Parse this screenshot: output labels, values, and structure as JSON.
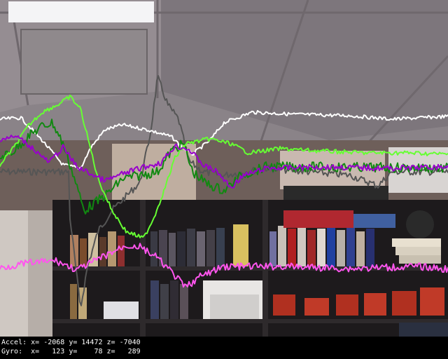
{
  "hud": {
    "accel": "Accel: x= -2068 y= 14472 z= -7040",
    "gyro": "Gyro:  x=   123 y=    78 z=   289"
  },
  "colors": {
    "white_trace": "#ffffff",
    "bright_green_trace": "#66ff33",
    "dark_green_trace": "#118811",
    "purple_trace": "#9900cc",
    "magenta_trace": "#ff55ee",
    "gray_trace": "#555555"
  },
  "scene": {
    "description_icons": [
      "ceiling-light",
      "bookshelf",
      "books",
      "storage-bins"
    ]
  }
}
